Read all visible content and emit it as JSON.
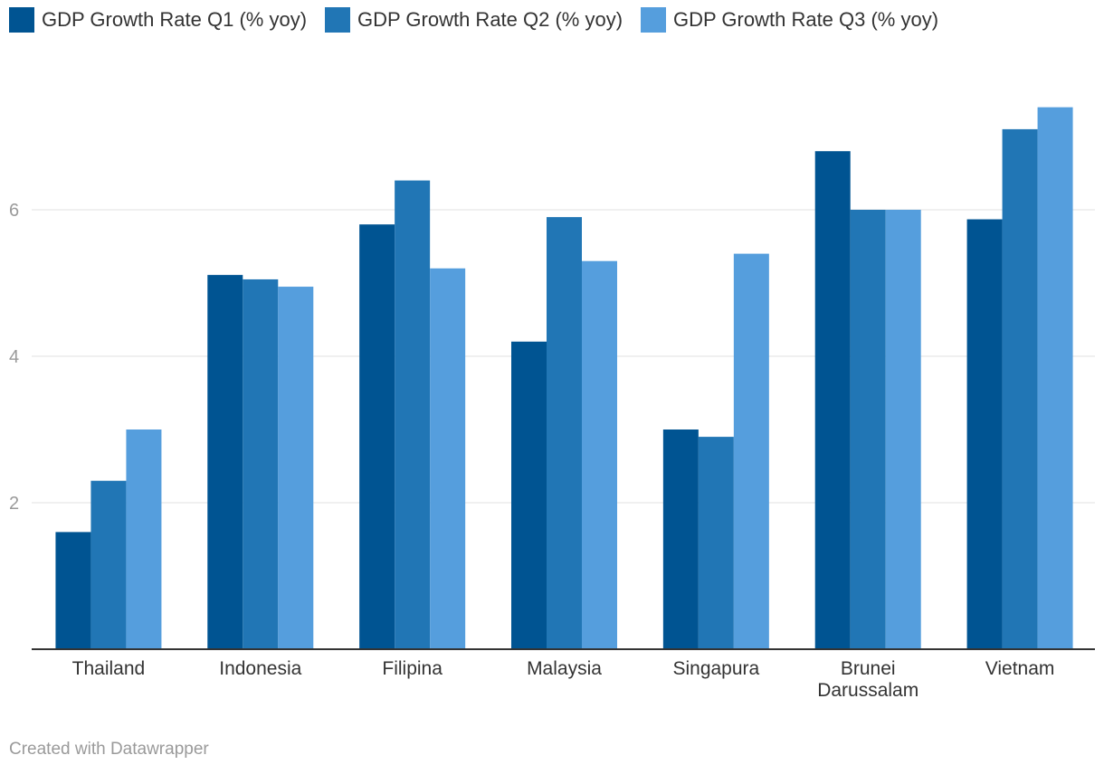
{
  "chart_data": {
    "type": "bar",
    "title": "",
    "xlabel": "",
    "ylabel": "",
    "categories": [
      [
        "Thailand"
      ],
      [
        "Indonesia"
      ],
      [
        "Filipina"
      ],
      [
        "Malaysia"
      ],
      [
        "Singapura"
      ],
      [
        "Brunei",
        "Darussalam"
      ],
      [
        "Vietnam"
      ]
    ],
    "series": [
      {
        "name": "GDP Growth Rate Q1 (% yoy)",
        "color": "#005492",
        "values": [
          1.6,
          5.11,
          5.8,
          4.2,
          3.0,
          6.8,
          5.87
        ]
      },
      {
        "name": "GDP Growth Rate Q2 (% yoy)",
        "color": "#2176b5",
        "values": [
          2.3,
          5.05,
          6.4,
          5.9,
          2.9,
          6.0,
          7.1
        ]
      },
      {
        "name": "GDP Growth Rate Q3 (% yoy)",
        "color": "#559edd",
        "values": [
          3.0,
          4.95,
          5.2,
          5.3,
          5.4,
          6.0,
          7.4
        ]
      }
    ],
    "yticks": [
      2,
      4,
      6
    ],
    "ylim": [
      0,
      8
    ],
    "grid": true,
    "legend_position": "top-left"
  },
  "footer": "Created with Datawrapper"
}
